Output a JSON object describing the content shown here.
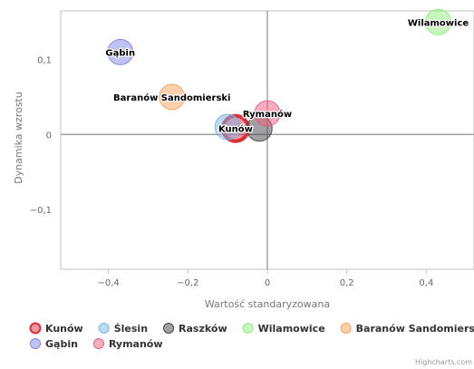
{
  "chart_data": {
    "type": "scatter",
    "xlabel": "Wartość standaryzowana",
    "ylabel": "Dynamika wzrostu",
    "xlim": [
      -0.52,
      0.52
    ],
    "ylim": [
      -0.18,
      0.165
    ],
    "x_ticks": [
      -0.4,
      -0.2,
      0,
      0.2,
      0.4
    ],
    "y_ticks": [
      -0.1,
      0,
      0.1
    ],
    "x_tick_labels": [
      "−0,4",
      "−0,2",
      "0",
      "0,2",
      "0,4"
    ],
    "y_tick_labels": [
      "−0,1",
      "0",
      "0,1"
    ],
    "grid": false,
    "legend_position": "bottom",
    "series": [
      {
        "name": "Kunów",
        "x": -0.08,
        "y": 0.008,
        "color": "#d9303c",
        "label": "Kunów",
        "highlighted": true
      },
      {
        "name": "Ślesin",
        "x": -0.1,
        "y": 0.01,
        "color": "#7cb5ec",
        "label": ""
      },
      {
        "name": "Raszków",
        "x": -0.02,
        "y": 0.008,
        "color": "#434348",
        "label": ""
      },
      {
        "name": "Wilamowice",
        "x": 0.43,
        "y": 0.15,
        "color": "#90ed7d",
        "label": "Wilamowice"
      },
      {
        "name": "Baranów Sandomierski",
        "x": -0.24,
        "y": 0.05,
        "color": "#f7a35c",
        "label": "Baranów Sandomierski"
      },
      {
        "name": "Gąbin",
        "x": -0.37,
        "y": 0.11,
        "color": "#8085e9",
        "label": "Gąbin"
      },
      {
        "name": "Rymanów",
        "x": 0.0,
        "y": 0.028,
        "color": "#f15c80",
        "label": "Rymanów"
      }
    ]
  },
  "credits": "Highcharts.com"
}
